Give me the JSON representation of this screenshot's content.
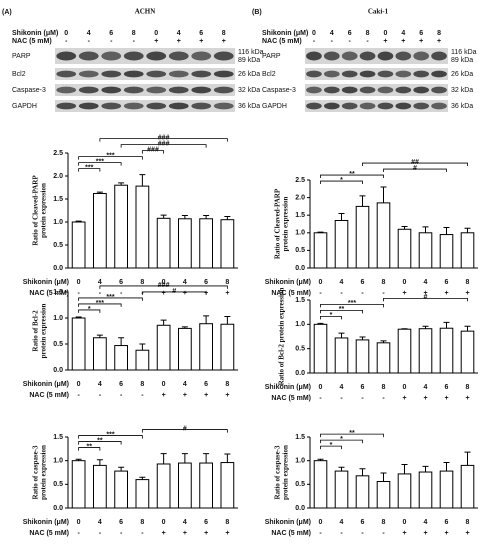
{
  "blots": [
    {
      "label": "(A)",
      "title": "ACHN",
      "shikonin_label": "Shikonin (μM)",
      "shikonin": [
        "0",
        "4",
        "6",
        "8",
        "0",
        "4",
        "6",
        "8"
      ],
      "nac_label": "NAC (5 mM)",
      "nac": [
        "-",
        "-",
        "-",
        "-",
        "+",
        "+",
        "+",
        "+"
      ],
      "rows": [
        {
          "protein": "PARP",
          "kda": [
            "116 kDa",
            "89 kDa"
          ]
        },
        {
          "protein": "Bcl2",
          "kda": [
            "26 kDa"
          ]
        },
        {
          "protein": "Caspase-3",
          "kda": [
            "32 kDa"
          ]
        },
        {
          "protein": "GAPDH",
          "kda": [
            "36 kDa"
          ]
        }
      ]
    },
    {
      "label": "(B)",
      "title": "Caki-1",
      "shikonin_label": "Shikonin (μM)",
      "shikonin": [
        "0",
        "4",
        "6",
        "8",
        "0",
        "4",
        "6",
        "8"
      ],
      "nac_label": "NAC (5 mM)",
      "nac": [
        "-",
        "-",
        "-",
        "-",
        "+",
        "+",
        "+",
        "+"
      ],
      "rows": [
        {
          "protein": "PARP",
          "kda": [
            "116 kDa",
            "89 kDa"
          ]
        },
        {
          "protein": "Bcl2",
          "kda": [
            "26 kDa"
          ]
        },
        {
          "protein": "Caspase-3",
          "kda": [
            "32 kDa"
          ]
        },
        {
          "protein": "GAPDH",
          "kda": [
            "36 kDa"
          ]
        }
      ]
    }
  ],
  "chart_data": [
    {
      "type": "bar",
      "ylabel": [
        "Ratio of Cleaved-PARP",
        "protein expression"
      ],
      "shikonin_label": "Shikonin (μM)",
      "nac_label": "NAC (5 mM)",
      "categories": [
        "0",
        "4",
        "6",
        "8",
        "0",
        "4",
        "6",
        "8"
      ],
      "nac": [
        "-",
        "-",
        "-",
        "-",
        "+",
        "+",
        "+",
        "+"
      ],
      "values": [
        1.0,
        1.62,
        1.8,
        1.78,
        1.08,
        1.07,
        1.07,
        1.05
      ],
      "errors": [
        0.02,
        0.03,
        0.05,
        0.25,
        0.07,
        0.07,
        0.07,
        0.07
      ],
      "color": "#ffffff",
      "ylim": [
        0,
        2.5
      ],
      "yticks": [
        {
          "value": 0,
          "label": "0.0"
        },
        0.5,
        {
          "value": 1,
          "label": "1.0"
        },
        1.5,
        {
          "value": 2,
          "label": "2.0"
        },
        2.5
      ],
      "comparisons": [
        {
          "pair": [
            0,
            1
          ],
          "label": "***"
        },
        {
          "pair": [
            0,
            2
          ],
          "label": "***"
        },
        {
          "pair": [
            0,
            3
          ],
          "label": "***"
        },
        {
          "pair": [
            3,
            4
          ],
          "label": "###"
        },
        {
          "pair": [
            2,
            6
          ],
          "label": "###"
        },
        {
          "pair": [
            1,
            7
          ],
          "label": "###"
        }
      ]
    },
    {
      "type": "bar",
      "ylabel": [
        "Ratio of Bcl-2",
        "protein expression"
      ],
      "shikonin_label": "Shikonin (μM)",
      "nac_label": "NAC (5 mM)",
      "categories": [
        "0",
        "4",
        "6",
        "8",
        "0",
        "4",
        "6",
        "8"
      ],
      "nac": [
        "-",
        "-",
        "-",
        "-",
        "+",
        "+",
        "+",
        "+"
      ],
      "values": [
        1.0,
        0.62,
        0.47,
        0.38,
        0.86,
        0.8,
        0.89,
        0.88
      ],
      "errors": [
        0.02,
        0.05,
        0.15,
        0.12,
        0.1,
        0.03,
        0.15,
        0.15
      ],
      "color": "#ffffff",
      "ylim": [
        0,
        1.5
      ],
      "yticks": [
        {
          "value": 0,
          "label": "0.0"
        },
        0.5,
        {
          "value": 1,
          "label": "1.0"
        },
        1.5
      ],
      "comparisons": [
        {
          "pair": [
            0,
            1
          ],
          "label": "*"
        },
        {
          "pair": [
            0,
            2
          ],
          "label": "***"
        },
        {
          "pair": [
            0,
            3
          ],
          "label": "***"
        },
        {
          "pair": [
            3,
            6
          ],
          "label": "#"
        },
        {
          "pair": [
            1,
            7
          ],
          "label": "###"
        }
      ]
    },
    {
      "type": "bar",
      "ylabel": [
        "Ratio of caspase-3",
        "protein expression"
      ],
      "shikonin_label": "Shikonin (μM)",
      "nac_label": "NAC (5 mM)",
      "categories": [
        "0",
        "4",
        "6",
        "8",
        "0",
        "4",
        "6",
        "8"
      ],
      "nac": [
        "-",
        "-",
        "-",
        "-",
        "+",
        "+",
        "+",
        "+"
      ],
      "values": [
        1.0,
        0.9,
        0.78,
        0.6,
        0.93,
        0.95,
        0.95,
        0.96
      ],
      "errors": [
        0.03,
        0.12,
        0.08,
        0.05,
        0.22,
        0.2,
        0.2,
        0.18
      ],
      "color": "#ffffff",
      "ylim": [
        0,
        1.5
      ],
      "yticks": [
        {
          "value": 0,
          "label": "0.0"
        },
        0.5,
        {
          "value": 1,
          "label": "1.0"
        },
        1.5
      ],
      "comparisons": [
        {
          "pair": [
            0,
            1
          ],
          "label": "**"
        },
        {
          "pair": [
            0,
            2
          ],
          "label": "**"
        },
        {
          "pair": [
            0,
            3
          ],
          "label": "***"
        },
        {
          "pair": [
            3,
            7
          ],
          "label": "#"
        }
      ]
    },
    {
      "type": "bar",
      "ylabel": [
        "Ratio of Cleaved-PARP",
        "protein expression"
      ],
      "shikonin_label": "Shikonin (μM)",
      "nac_label": "NAC (5 mM)",
      "categories": [
        "0",
        "4",
        "6",
        "8",
        "0",
        "4",
        "6",
        "8"
      ],
      "nac": [
        "-",
        "-",
        "-",
        "-",
        "+",
        "+",
        "+",
        "+"
      ],
      "values": [
        1.0,
        1.35,
        1.75,
        1.85,
        1.1,
        1.0,
        0.95,
        1.0
      ],
      "errors": [
        0.02,
        0.2,
        0.3,
        0.45,
        0.08,
        0.17,
        0.2,
        0.13
      ],
      "color": "#ffffff",
      "ylim": [
        0,
        2.5
      ],
      "yticks": [
        {
          "value": 0,
          "label": "0.0"
        },
        0.5,
        {
          "value": 1,
          "label": "1.0"
        },
        1.5,
        {
          "value": 2,
          "label": "2.0"
        },
        2.5
      ],
      "comparisons": [
        {
          "pair": [
            0,
            2
          ],
          "label": "*"
        },
        {
          "pair": [
            0,
            3
          ],
          "label": "**"
        },
        {
          "pair": [
            3,
            6
          ],
          "label": "#"
        },
        {
          "pair": [
            2,
            7
          ],
          "label": "##"
        }
      ]
    },
    {
      "type": "bar",
      "ylabel": [
        "Ratio of Bcl-2 protein expression"
      ],
      "shikonin_label": "Shikonin (μM)",
      "nac_label": "NAC (5 mM)",
      "categories": [
        "0",
        "4",
        "6",
        "8",
        "0",
        "4",
        "6",
        "8"
      ],
      "nac": [
        "-",
        "-",
        "-",
        "-",
        "+",
        "+",
        "+",
        "+"
      ],
      "values": [
        1.0,
        0.72,
        0.68,
        0.62,
        0.9,
        0.91,
        0.92,
        0.86
      ],
      "errors": [
        0.02,
        0.1,
        0.06,
        0.04,
        0.01,
        0.05,
        0.12,
        0.1
      ],
      "color": "#ffffff",
      "ylim": [
        0,
        1.5
      ],
      "yticks": [
        {
          "value": 0,
          "label": "0.0"
        },
        0.5,
        {
          "value": 1,
          "label": "1.0"
        },
        1.5
      ],
      "comparisons": [
        {
          "pair": [
            0,
            1
          ],
          "label": "*"
        },
        {
          "pair": [
            0,
            2
          ],
          "label": "**"
        },
        {
          "pair": [
            0,
            3
          ],
          "label": "***"
        },
        {
          "pair": [
            3,
            7
          ],
          "label": "#"
        }
      ]
    },
    {
      "type": "bar",
      "ylabel": [
        "Ratio of caspase-3",
        "protein expression"
      ],
      "shikonin_label": "Shikonin (μM)",
      "nac_label": "NAC (5 mM)",
      "categories": [
        "0",
        "4",
        "6",
        "8",
        "0",
        "4",
        "6",
        "8"
      ],
      "nac": [
        "-",
        "-",
        "-",
        "-",
        "+",
        "+",
        "+",
        "+"
      ],
      "values": [
        1.0,
        0.78,
        0.68,
        0.56,
        0.72,
        0.76,
        0.78,
        0.9
      ],
      "errors": [
        0.03,
        0.08,
        0.15,
        0.18,
        0.2,
        0.12,
        0.18,
        0.28
      ],
      "color": "#ffffff",
      "ylim": [
        0,
        1.5
      ],
      "yticks": [
        {
          "value": 0,
          "label": "0.0"
        },
        0.5,
        {
          "value": 1,
          "label": "1.0"
        },
        1.5
      ],
      "comparisons": [
        {
          "pair": [
            0,
            1
          ],
          "label": "*"
        },
        {
          "pair": [
            0,
            2
          ],
          "label": "*"
        },
        {
          "pair": [
            0,
            3
          ],
          "label": "**"
        }
      ]
    }
  ]
}
